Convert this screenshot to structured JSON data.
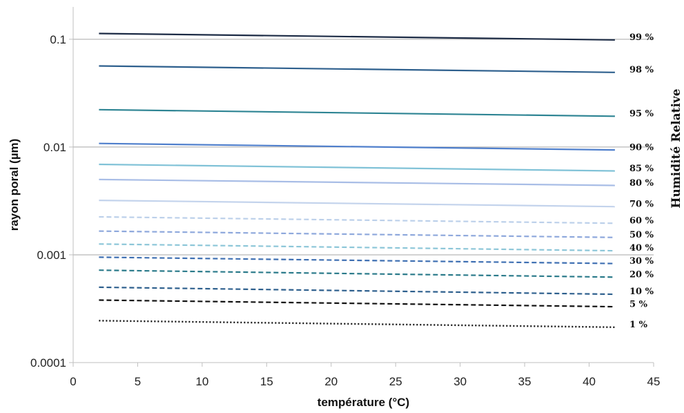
{
  "chart_data": {
    "type": "line",
    "title": "",
    "xlabel": "température (°C)",
    "ylabel": "rayon poral (µm)",
    "legend_title": "Humidité Relative",
    "xlim": [
      0,
      45
    ],
    "ylim": [
      0.0001,
      0.2
    ],
    "y_scale": "log",
    "x_ticks": [
      "0",
      "5",
      "10",
      "15",
      "20",
      "25",
      "30",
      "35",
      "40",
      "45"
    ],
    "y_ticks": [
      "0.0001",
      "0.001",
      "0.01",
      "0.1"
    ],
    "grid": "horizontal",
    "legend_position": "right",
    "x": [
      2,
      42
    ],
    "series": [
      {
        "name": "99 %",
        "values": [
          0.113,
          0.0985
        ],
        "color": "#1c2b45",
        "dash": "solid"
      },
      {
        "name": "98 %",
        "values": [
          0.0565,
          0.0493
        ],
        "color": "#2d5f8d",
        "dash": "solid"
      },
      {
        "name": "95 %",
        "values": [
          0.0222,
          0.0193
        ],
        "color": "#2d8493",
        "dash": "solid"
      },
      {
        "name": "90 %",
        "values": [
          0.0108,
          0.0094
        ],
        "color": "#4f7fcc",
        "dash": "solid"
      },
      {
        "name": "85 %",
        "values": [
          0.0069,
          0.006
        ],
        "color": "#80c2d7",
        "dash": "solid"
      },
      {
        "name": "80 %",
        "values": [
          0.005,
          0.0044
        ],
        "color": "#a8bde6",
        "dash": "solid"
      },
      {
        "name": "70 %",
        "values": [
          0.0032,
          0.0028
        ],
        "color": "#c3d3ec",
        "dash": "solid"
      },
      {
        "name": "60 %",
        "values": [
          0.00225,
          0.00196
        ],
        "color": "#bcd0ea",
        "dash": "dashed"
      },
      {
        "name": "50 %",
        "values": [
          0.00166,
          0.00145
        ],
        "color": "#8ea8dc",
        "dash": "dashed"
      },
      {
        "name": "40 %",
        "values": [
          0.00126,
          0.00109
        ],
        "color": "#8cc6d8",
        "dash": "dashed"
      },
      {
        "name": "30 %",
        "values": [
          0.00095,
          0.00083
        ],
        "color": "#3e6fb2",
        "dash": "dashed"
      },
      {
        "name": "20 %",
        "values": [
          0.00072,
          0.00062
        ],
        "color": "#2a7a8a",
        "dash": "dashed"
      },
      {
        "name": "10 %",
        "values": [
          0.0005,
          0.00043
        ],
        "color": "#2d5f8d",
        "dash": "dashed"
      },
      {
        "name": "5 %",
        "values": [
          0.00038,
          0.00033
        ],
        "color": "#111111",
        "dash": "dashed"
      },
      {
        "name": "1 %",
        "values": [
          0.000245,
          0.000213
        ],
        "color": "#111111",
        "dash": "dotted"
      }
    ]
  }
}
